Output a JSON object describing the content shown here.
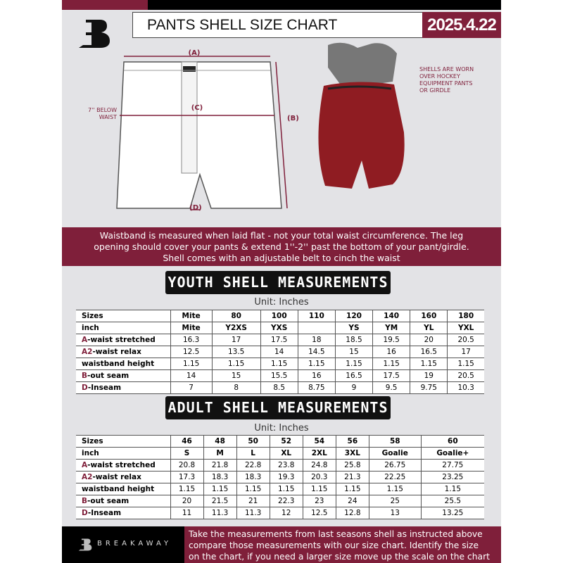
{
  "header": {
    "title": "PANTS SHELL SIZE CHART",
    "date": "2025.4.22"
  },
  "diagram": {
    "label_a": "(A)",
    "label_b": "(B)",
    "label_c": "(C)",
    "label_d": "(D)",
    "waist_note": "7'' BELOW WAIST",
    "shell_note": "SHELLS ARE WORN OVER HOCKEY EQUIPMENT PANTS OR GIRDLE"
  },
  "colors": {
    "brand": "#7f1f3a",
    "black": "#000000"
  },
  "info_band": [
    "Waistband is measured when laid flat - not your total waist circumference. The leg",
    "opening should cover your pants & extend 1''-2'' past the bottom of your pant/girdle.",
    "Shell comes with an adjustable belt to cinch the waist"
  ],
  "youth": {
    "title": "YOUTH SHELL MEASUREMENTS",
    "unit": "Unit: Inches",
    "rows": [
      {
        "prefix": "",
        "label": "Sizes",
        "values": [
          "Mite",
          "80",
          "100",
          "110",
          "120",
          "140",
          "160",
          "180"
        ]
      },
      {
        "prefix": "",
        "label": "inch",
        "values": [
          "Mite",
          "Y2XS",
          "YXS",
          "",
          "YS",
          "YM",
          "YL",
          "YXL"
        ]
      },
      {
        "prefix": "A",
        "label": "-waist stretched",
        "values": [
          "16.3",
          "17",
          "17.5",
          "18",
          "18.5",
          "19.5",
          "20",
          "20.5"
        ]
      },
      {
        "prefix": "A2",
        "label": "-waist relax",
        "values": [
          "12.5",
          "13.5",
          "14",
          "14.5",
          "15",
          "16",
          "16.5",
          "17"
        ]
      },
      {
        "prefix": "",
        "label": "waistband height",
        "values": [
          "1.15",
          "1.15",
          "1.15",
          "1.15",
          "1.15",
          "1.15",
          "1.15",
          "1.15"
        ]
      },
      {
        "prefix": "B",
        "label": "-out seam",
        "values": [
          "14",
          "15",
          "15.5",
          "16",
          "16.5",
          "17.5",
          "19",
          "20.5"
        ]
      },
      {
        "prefix": "D",
        "label": "-Inseam",
        "values": [
          "7",
          "8",
          "8.5",
          "8.75",
          "9",
          "9.5",
          "9.75",
          "10.3"
        ]
      }
    ]
  },
  "adult": {
    "title": "ADULT SHELL MEASUREMENTS",
    "unit": "Unit: Inches",
    "rows": [
      {
        "prefix": "",
        "label": "Sizes",
        "values": [
          "46",
          "48",
          "50",
          "52",
          "54",
          "56",
          "58",
          "60"
        ]
      },
      {
        "prefix": "",
        "label": "inch",
        "values": [
          "S",
          "M",
          "L",
          "XL",
          "2XL",
          "3XL",
          "Goalie",
          "Goalie+"
        ]
      },
      {
        "prefix": "A",
        "label": "-waist stretched",
        "values": [
          "20.8",
          "21.8",
          "22.8",
          "23.8",
          "24.8",
          "25.8",
          "26.75",
          "27.75"
        ]
      },
      {
        "prefix": "A2",
        "label": "-waist relax",
        "values": [
          "17.3",
          "18.3",
          "18.3",
          "19.3",
          "20.3",
          "21.3",
          "22.25",
          "23.25"
        ]
      },
      {
        "prefix": "",
        "label": "waistband height",
        "values": [
          "1.15",
          "1.15",
          "1.15",
          "1.15",
          "1.15",
          "1.15",
          "1.15",
          "1.15"
        ]
      },
      {
        "prefix": "B",
        "label": "-out seam",
        "values": [
          "20",
          "21.5",
          "21",
          "22.3",
          "23",
          "24",
          "25",
          "25.5"
        ]
      },
      {
        "prefix": "D",
        "label": "-Inseam",
        "values": [
          "11",
          "11.3",
          "11.3",
          "12",
          "12.5",
          "12.8",
          "13",
          "13.25"
        ]
      }
    ]
  },
  "footer": {
    "brand": "BREAKAWAY",
    "lines": [
      "Take the measurements from last seasons shell as instructed above",
      "compare those measurements  with our size chart. Identify the size",
      "on the chart, if you need a larger size move up the scale on the chart"
    ]
  }
}
